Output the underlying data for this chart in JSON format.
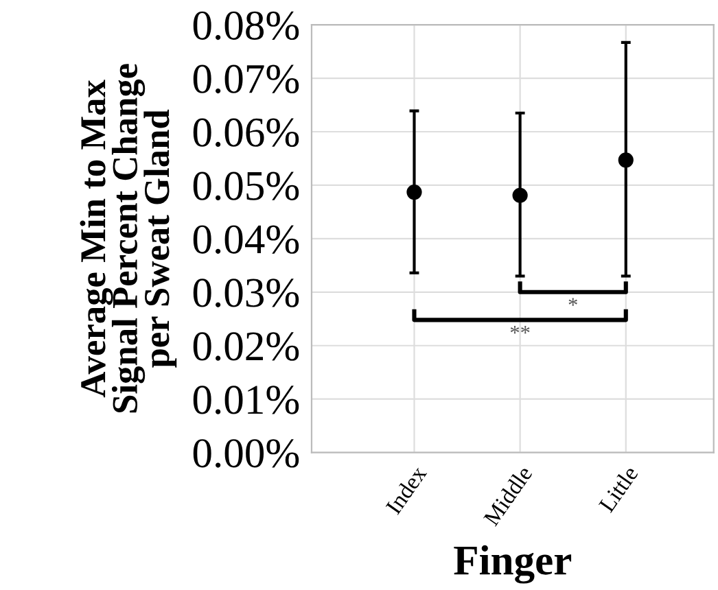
{
  "chart_data": {
    "type": "scatter",
    "xlabel": "Finger",
    "ylabel": "Average Min to Max\nSignal Percent Change\nper Sweat Gland",
    "categories": [
      "Index",
      "Middle",
      "Little"
    ],
    "values": [
      0.0487,
      0.0481,
      0.0547
    ],
    "errors": [
      [
        0.0336,
        0.0639
      ],
      [
        0.033,
        0.0635
      ],
      [
        0.033,
        0.0767
      ]
    ],
    "color": "#000000",
    "marker": "circle",
    "ylim": [
      0,
      0.08
    ],
    "yticks": [
      {
        "value": 0,
        "label": "0.00%"
      },
      {
        "value": 0.01,
        "label": "0.01%"
      },
      {
        "value": 0.02,
        "label": "0.02%"
      },
      {
        "value": 0.03,
        "label": "0.03%"
      },
      {
        "value": 0.04,
        "label": "0.04%"
      },
      {
        "value": 0.05,
        "label": "0.05%"
      },
      {
        "value": 0.06,
        "label": "0.06%"
      },
      {
        "value": 0.07,
        "label": "0.07%"
      },
      {
        "value": 0.08,
        "label": "0.08%"
      }
    ],
    "grid": true,
    "annotations": [
      "*",
      "**"
    ]
  }
}
